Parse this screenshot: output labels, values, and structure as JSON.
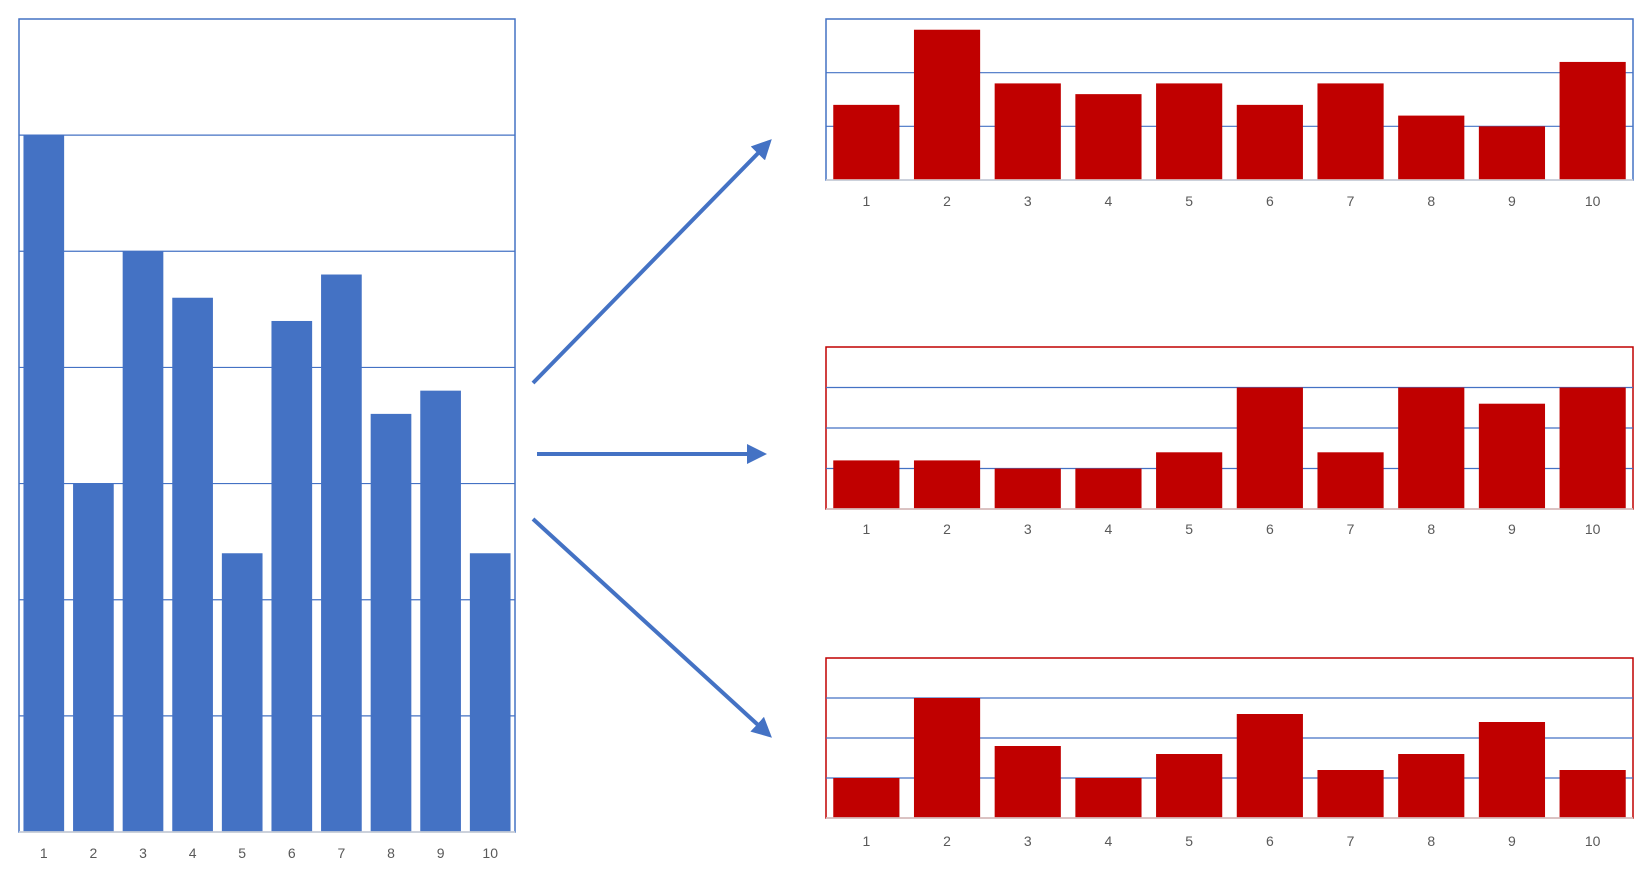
{
  "colors": {
    "primary_bar": "#4472c4",
    "primary_frame": "#4472c4",
    "gridline": "#4472c4",
    "derived_bar": "#c00000",
    "derived_frame_1": "#4472c4",
    "derived_frame_2": "#c00000",
    "derived_frame_3": "#c00000",
    "arrow": "#4472c4",
    "tick_text": "#595959"
  },
  "chart_data": [
    {
      "type": "bar",
      "categories": [
        "1",
        "2",
        "3",
        "4",
        "5",
        "6",
        "7",
        "8",
        "9",
        "10"
      ],
      "values": [
        6.0,
        3.0,
        5.0,
        4.6,
        2.4,
        4.4,
        4.8,
        3.6,
        3.8,
        2.4
      ],
      "ylim": [
        0,
        7
      ],
      "grid": true
    },
    {
      "type": "bar",
      "categories": [
        "1",
        "2",
        "3",
        "4",
        "5",
        "6",
        "7",
        "8",
        "9",
        "10"
      ],
      "values": [
        1.4,
        2.8,
        1.8,
        1.6,
        1.8,
        1.4,
        1.8,
        1.2,
        1.0,
        2.2
      ],
      "ylim": [
        0,
        3
      ],
      "grid": true
    },
    {
      "type": "bar",
      "categories": [
        "1",
        "2",
        "3",
        "4",
        "5",
        "6",
        "7",
        "8",
        "9",
        "10"
      ],
      "values": [
        1.2,
        1.2,
        1.0,
        1.0,
        1.4,
        3.0,
        1.4,
        3.0,
        2.6,
        3.0
      ],
      "ylim": [
        0,
        4
      ],
      "grid": true
    },
    {
      "type": "bar",
      "categories": [
        "1",
        "2",
        "3",
        "4",
        "5",
        "6",
        "7",
        "8",
        "9",
        "10"
      ],
      "values": [
        1.0,
        3.0,
        1.8,
        1.0,
        1.6,
        2.6,
        1.2,
        1.6,
        2.4,
        1.2
      ],
      "ylim": [
        0,
        4
      ],
      "grid": true
    }
  ],
  "arrows": [
    {
      "from": "chart-1",
      "to": "chart-2"
    },
    {
      "from": "chart-1",
      "to": "chart-3"
    },
    {
      "from": "chart-1",
      "to": "chart-4"
    }
  ]
}
